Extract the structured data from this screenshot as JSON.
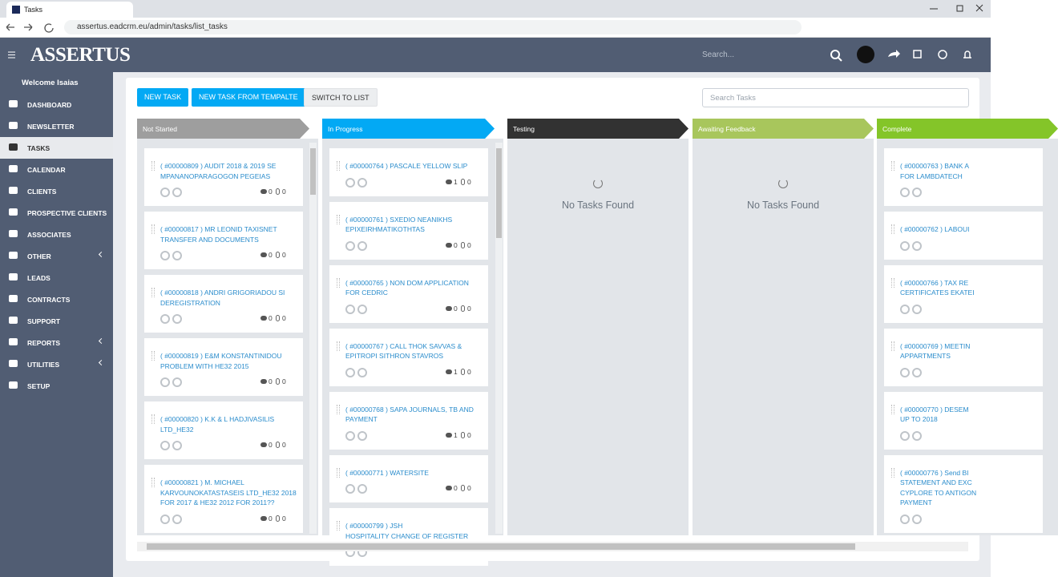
{
  "browser": {
    "tab_title": "Tasks",
    "url": "assertus.eadcrm.eu/admin/tasks/list_tasks"
  },
  "header": {
    "logo": "ASSERTUS",
    "search_placeholder": "Search..."
  },
  "sidebar": {
    "welcome": "Welcome Isaias",
    "active_index": 2,
    "items": [
      {
        "label": "DASHBOARD"
      },
      {
        "label": "NEWSLETTER"
      },
      {
        "label": "TASKS"
      },
      {
        "label": "CALENDAR"
      },
      {
        "label": "CLIENTS"
      },
      {
        "label": "PROSPECTIVE CLIENTS"
      },
      {
        "label": "ASSOCIATES"
      },
      {
        "label": "OTHER",
        "submenu": true
      },
      {
        "label": "LEADS"
      },
      {
        "label": "CONTRACTS"
      },
      {
        "label": "SUPPORT"
      },
      {
        "label": "REPORTS",
        "submenu": true
      },
      {
        "label": "UTILITIES",
        "submenu": true
      },
      {
        "label": "SETUP"
      }
    ]
  },
  "toolbar": {
    "buttons": [
      {
        "label": "NEW TASK",
        "style": "primary"
      },
      {
        "label": "NEW TASK FROM TEMPALTE",
        "style": "primary"
      },
      {
        "label": "SWITCH TO LIST",
        "style": "default"
      }
    ],
    "search_placeholder": "Search Tasks"
  },
  "board": {
    "columns": [
      {
        "title": "Not Started",
        "color": "#9e9e9e",
        "tasks": [
          {
            "title_lines": [
              "( #00000809 ) AUDIT 2018 & 2019 SE",
              "MPANANOPARAGOGON PEGEIAS"
            ],
            "comments": 0,
            "attachments": 0
          },
          {
            "title_lines": [
              "( #00000817 ) MR LEONID TAXISNET",
              "TRANSFER AND DOCUMENTS"
            ],
            "comments": 0,
            "attachments": 0
          },
          {
            "title_lines": [
              "( #00000818 ) ANDRI GRIGORIADOU SI",
              "DEREGISTRATION"
            ],
            "comments": 0,
            "attachments": 0
          },
          {
            "title_lines": [
              "( #00000819 ) E&M KONSTANTINIDOU",
              "PROBLEM WITH HE32 2015"
            ],
            "comments": 0,
            "attachments": 0
          },
          {
            "title_lines": [
              "( #00000820 ) K.K & L HADJIVASILIS",
              "LTD_HE32"
            ],
            "comments": 0,
            "attachments": 0
          },
          {
            "title_lines": [
              "( #00000821 ) M. MICHAEL",
              "KARVOUNOKATASTASEIS LTD_HE32 2018",
              "FOR 2017 & HE32 2012 FOR 2011??"
            ],
            "comments": 0,
            "attachments": 0
          }
        ]
      },
      {
        "title": "In Progress",
        "color": "#03a9f4",
        "tasks": [
          {
            "title_lines": [
              "( #00000764 ) PASCALE YELLOW SLIP"
            ],
            "comments": 1,
            "attachments": 0
          },
          {
            "title_lines": [
              "( #00000761 ) SXEDIO NEANIKHS",
              "EPIXEIRHMATIKOTHTAS"
            ],
            "comments": 0,
            "attachments": 0
          },
          {
            "title_lines": [
              "( #00000765 ) NON DOM APPLICATION",
              "FOR CEDRIC"
            ],
            "comments": 0,
            "attachments": 0
          },
          {
            "title_lines": [
              "( #00000767 ) CALL THOK SAVVAS &",
              "EPITROPI SITHRON STAVROS"
            ],
            "comments": 1,
            "attachments": 0
          },
          {
            "title_lines": [
              "( #00000768 ) SAPA JOURNALS, TB AND",
              "PAYMENT"
            ],
            "comments": 1,
            "attachments": 0
          },
          {
            "title_lines": [
              "( #00000771 ) WATERSITE"
            ],
            "comments": 0,
            "attachments": 0
          },
          {
            "title_lines": [
              "( #00000799 ) JSH",
              "HOSPITALITY CHANGE OF REGISTER"
            ]
          }
        ]
      },
      {
        "title": "Testing",
        "color": "#323232",
        "empty_text": "No Tasks Found",
        "tasks": []
      },
      {
        "title": "Awaiting Feedback",
        "color": "#a8c65c",
        "empty_text": "No Tasks Found",
        "tasks": []
      },
      {
        "title": "Complete",
        "color": "#84c529",
        "tasks": [
          {
            "title_lines": [
              "( #00000763 ) BANK A",
              "FOR LAMBDATECH"
            ]
          },
          {
            "title_lines": [
              "( #00000762 ) LABOUI"
            ]
          },
          {
            "title_lines": [
              "( #00000766 ) TAX RE",
              "CERTIFICATES EKATEI"
            ]
          },
          {
            "title_lines": [
              "( #00000769 ) MEETIN",
              "APPARTMENTS"
            ]
          },
          {
            "title_lines": [
              "( #00000770 ) DESEM",
              "UP TO 2018"
            ]
          },
          {
            "title_lines": [
              "( #00000776 ) Send BI",
              "STATEMENT AND EXC",
              "CYPLORE TO ANTIGON",
              "PAYMENT"
            ]
          }
        ]
      }
    ]
  }
}
